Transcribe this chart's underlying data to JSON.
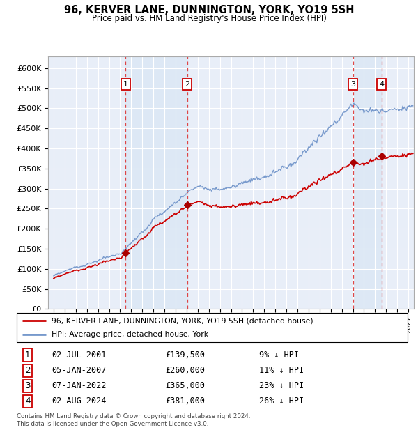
{
  "title": "96, KERVER LANE, DUNNINGTON, YORK, YO19 5SH",
  "subtitle": "Price paid vs. HM Land Registry's House Price Index (HPI)",
  "ylabel_ticks": [
    "£0",
    "£50K",
    "£100K",
    "£150K",
    "£200K",
    "£250K",
    "£300K",
    "£350K",
    "£400K",
    "£450K",
    "£500K",
    "£550K",
    "£600K"
  ],
  "ytick_values": [
    0,
    50000,
    100000,
    150000,
    200000,
    250000,
    300000,
    350000,
    400000,
    450000,
    500000,
    550000,
    600000
  ],
  "xmin": 1994.5,
  "xmax": 2027.5,
  "ymin": 0,
  "ymax": 630000,
  "background_color": "#ffffff",
  "plot_bg_color": "#e8eef8",
  "grid_color": "#ffffff",
  "sale_dates": [
    2001.5,
    2007.04,
    2022.02,
    2024.58
  ],
  "sale_prices": [
    139500,
    260000,
    365000,
    381000
  ],
  "sale_labels": [
    "1",
    "2",
    "3",
    "4"
  ],
  "sale_info": [
    {
      "num": "1",
      "date": "02-JUL-2001",
      "price": "£139,500",
      "pct": "9% ↓ HPI"
    },
    {
      "num": "2",
      "date": "05-JAN-2007",
      "price": "£260,000",
      "pct": "11% ↓ HPI"
    },
    {
      "num": "3",
      "date": "07-JAN-2022",
      "price": "£365,000",
      "pct": "23% ↓ HPI"
    },
    {
      "num": "4",
      "date": "02-AUG-2024",
      "price": "£381,000",
      "pct": "26% ↓ HPI"
    }
  ],
  "legend_property_label": "96, KERVER LANE, DUNNINGTON, YORK, YO19 5SH (detached house)",
  "legend_hpi_label": "HPI: Average price, detached house, York",
  "footer": "Contains HM Land Registry data © Crown copyright and database right 2024.\nThis data is licensed under the Open Government Licence v3.0.",
  "property_line_color": "#cc0000",
  "hpi_line_color": "#7799cc",
  "dashed_line_color": "#dd3333",
  "shaded_color": "#ccd8ee",
  "sale_box_color": "#cc0000",
  "sale_box_face": "#ffffff",
  "sale_dot_color": "#aa0000"
}
